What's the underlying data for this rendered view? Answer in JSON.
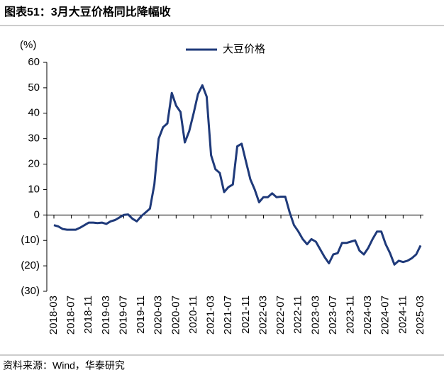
{
  "chart_data": {
    "type": "line",
    "title": "图表51：3月大豆价格同比降幅收",
    "y_label": "(%)",
    "source": "资料来源：Wind，华泰研究",
    "categories": [
      "2018-03",
      null,
      null,
      null,
      "2018-07",
      null,
      null,
      null,
      "2018-11",
      null,
      null,
      null,
      "2019-03",
      null,
      null,
      null,
      "2019-07",
      null,
      null,
      null,
      "2019-11",
      null,
      null,
      null,
      "2020-03",
      null,
      null,
      null,
      "2020-07",
      null,
      null,
      null,
      "2020-11",
      null,
      null,
      null,
      "2021-03",
      null,
      null,
      null,
      "2021-07",
      null,
      null,
      null,
      "2021-11",
      null,
      null,
      null,
      "2022-03",
      null,
      null,
      null,
      "2022-07",
      null,
      null,
      null,
      "2022-11",
      null,
      null,
      null,
      "2023-03",
      null,
      null,
      null,
      "2023-07",
      null,
      null,
      null,
      "2023-11",
      null,
      null,
      null,
      "2024-03",
      null,
      null,
      null,
      "2024-07",
      null,
      null,
      null,
      "2024-11",
      null,
      null,
      null,
      "2025-03"
    ],
    "series": [
      {
        "name": "大豆价格",
        "color": "#1f3a7a",
        "values": [
          -4,
          -4.5,
          -5.5,
          -5.8,
          -5.8,
          -5.8,
          -5,
          -4,
          -3,
          -3,
          -3.2,
          -3,
          -3.5,
          -2.5,
          -2,
          -1,
          0,
          0.2,
          -1.5,
          -2.5,
          -0.5,
          1,
          2.5,
          12,
          30,
          34.5,
          36,
          48,
          43,
          40.5,
          28.5,
          33,
          40,
          47.5,
          51,
          46.5,
          23.5,
          18,
          16.5,
          9,
          11,
          12,
          27,
          28,
          21,
          14,
          10,
          5,
          7,
          7,
          8.5,
          7,
          7.2,
          7.2,
          1,
          -4,
          -6.5,
          -9.5,
          -11.5,
          -9.5,
          -10.5,
          -13.5,
          -16.5,
          -19,
          -15.5,
          -15,
          -11,
          -11,
          -10.5,
          -10,
          -14,
          -15.5,
          -13,
          -9.5,
          -6.5,
          -6.5,
          -11.5,
          -15,
          -19.5,
          -18,
          -18.5,
          -18,
          -17,
          -15.5,
          -12
        ]
      }
    ],
    "ylim": [
      -30,
      60
    ],
    "yticks": [
      {
        "value": -30,
        "label": "(30)"
      },
      {
        "value": -20,
        "label": "(20)"
      },
      {
        "value": -10,
        "label": "(10)"
      },
      0,
      10,
      20,
      30,
      40,
      50,
      60
    ],
    "legend": "top"
  }
}
